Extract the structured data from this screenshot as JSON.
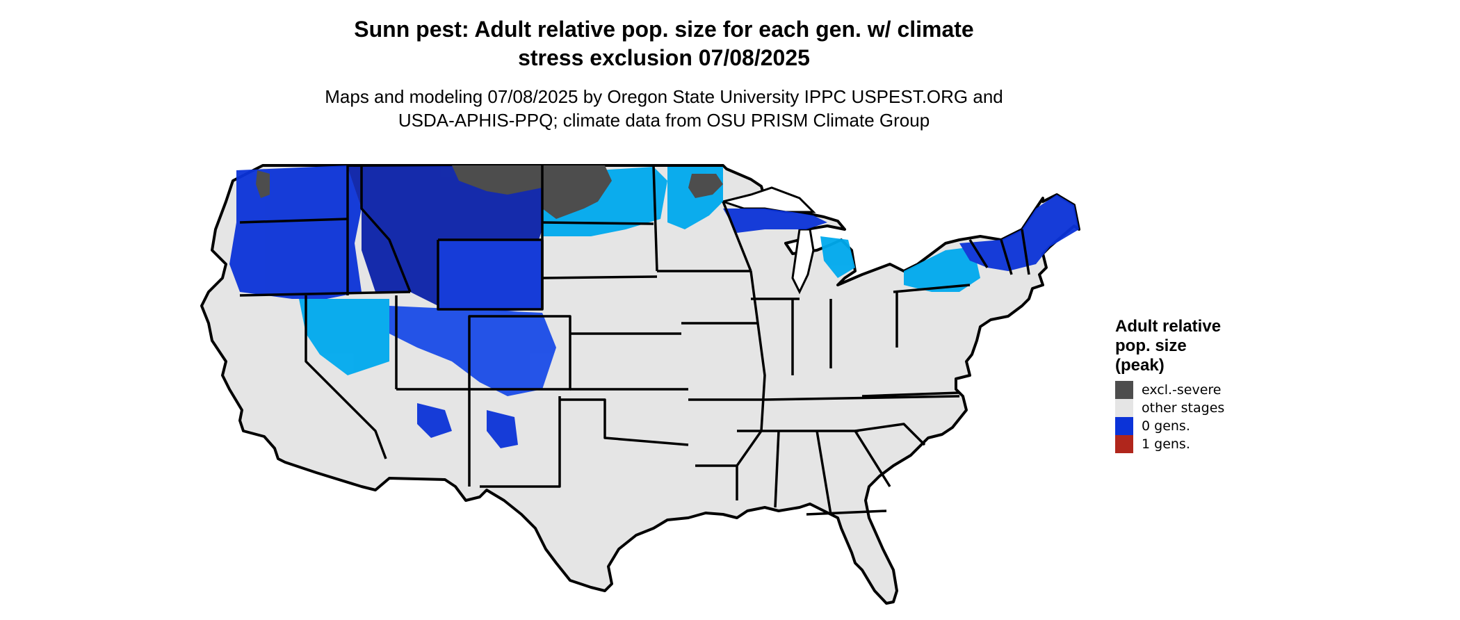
{
  "title": {
    "line1": "Sunn pest: Adult relative pop. size for each gen. w/ climate",
    "line2": "stress exclusion 07/08/2025"
  },
  "subtitle": {
    "line1": "Maps and modeling 07/08/2025 by Oregon State University IPPC USPEST.ORG and",
    "line2": "USDA-APHIS-PPQ; climate data from OSU PRISM Climate Group"
  },
  "legend": {
    "title_lines": [
      "Adult relative",
      "pop. size",
      "(peak)"
    ],
    "items": [
      {
        "label": "excl.-severe",
        "color": "#4d4d4d"
      },
      {
        "label": "other stages",
        "color": "#e5e5e5"
      },
      {
        "label": "0 gens.",
        "color": "#0b33d8"
      },
      {
        "label": "1 gens.",
        "color": "#b0261c"
      }
    ]
  },
  "map": {
    "region": "Contiguous United States",
    "colors": {
      "background_land": "#e5e5e5",
      "excluded": "#4d4d4d",
      "light_blue": "#00aaee",
      "blue": "#0b33d8",
      "deep_blue": "#0a22a8",
      "border": "#000000"
    }
  }
}
